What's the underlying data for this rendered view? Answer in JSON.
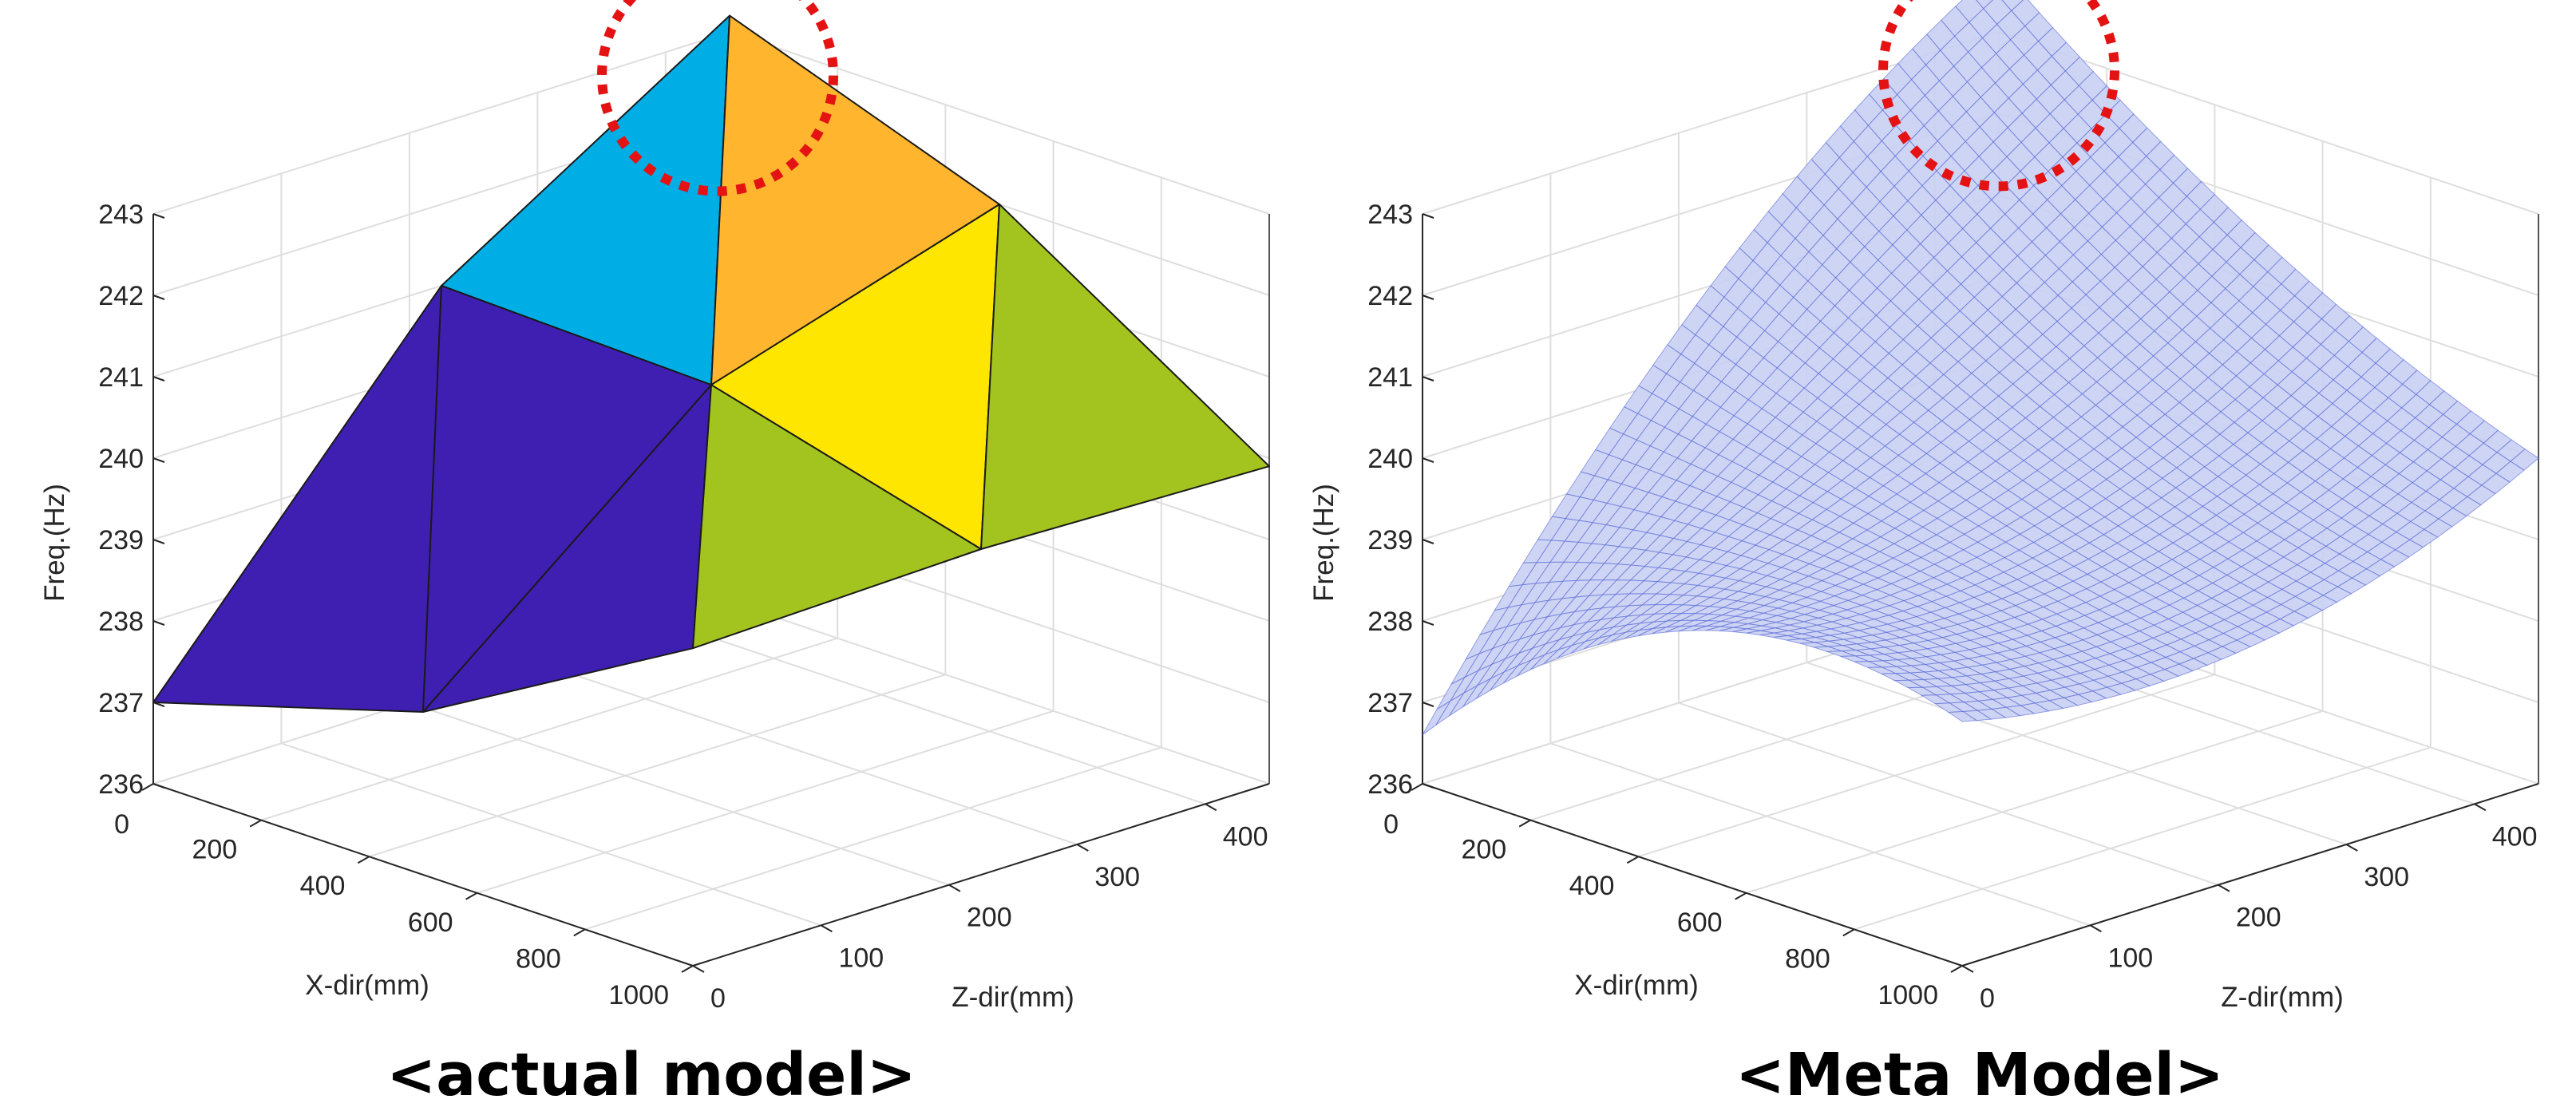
{
  "chart_data": [
    {
      "type": "surface",
      "caption": "<actual model>",
      "xlabel": "X-dir(mm)",
      "zlabel": "Z-dir(mm)",
      "ylabel": "Freq.(Hz)",
      "x_ticks": [
        "0",
        "200",
        "400",
        "600",
        "800",
        "1000"
      ],
      "z_ticks": [
        "0",
        "100",
        "200",
        "300",
        "400"
      ],
      "y_ticks": [
        "236",
        "237",
        "238",
        "239",
        "240",
        "241",
        "242",
        "243"
      ],
      "xlim": [
        0,
        1000
      ],
      "zlim": [
        0,
        450
      ],
      "ylim": [
        236,
        243
      ],
      "grid": true,
      "style": "faceted piecewise-linear surface",
      "x": [
        0,
        500,
        1000
      ],
      "z": [
        0,
        225,
        450
      ],
      "freq": [
        [
          237.0,
          241.0,
          243.2
        ],
        [
          238.0,
          240.9,
          242.0
        ],
        [
          239.9,
          240.0,
          239.9
        ]
      ],
      "face_colors": [
        "#3f1fb2",
        "#3f1fb2",
        "#00aee6",
        "#ffb52e",
        "#3f1fb2",
        "#a3c41f",
        "#ffe600",
        "#a3c41f"
      ],
      "highlight": "red dashed circle around the maximum frequency"
    },
    {
      "type": "surface",
      "caption": "<Meta Model>",
      "xlabel": "X-dir(mm)",
      "zlabel": "Z-dir(mm)",
      "ylabel": "Freq.(Hz)",
      "x_ticks": [
        "0",
        "200",
        "400",
        "600",
        "800",
        "1000"
      ],
      "z_ticks": [
        "0",
        "100",
        "200",
        "300",
        "400"
      ],
      "y_ticks": [
        "236",
        "237",
        "238",
        "239",
        "240",
        "241",
        "242",
        "243"
      ],
      "xlim": [
        0,
        1000
      ],
      "zlim": [
        0,
        450
      ],
      "ylim": [
        236,
        243
      ],
      "grid": true,
      "style": "translucent blue mesh surface",
      "model": "smooth interpolation through the same 3x3 sample grid",
      "x": [
        0,
        500,
        1000
      ],
      "z": [
        0,
        225,
        450
      ],
      "freq": [
        [
          236.6,
          241.0,
          243.8
        ],
        [
          239.0,
          239.6,
          241.5
        ],
        [
          239.0,
          238.8,
          240.0
        ]
      ],
      "surface_color": "#4c5fd6",
      "highlight": "red dashed circle around the maximum frequency"
    }
  ]
}
